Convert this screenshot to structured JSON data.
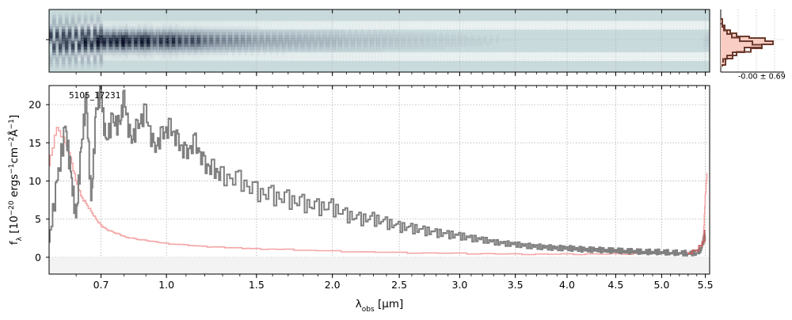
{
  "figure": {
    "object_label": "5105_17231",
    "hist_stat": "-0.00 ± 0.69"
  },
  "colors": {
    "spectrum": "#808080",
    "error": "#f4a6a6",
    "model": "#c06060",
    "image_bg": "#c8dadb",
    "hist_fill": "#f9cdc3",
    "hist_line": "#6b3a2e",
    "grid": "#b0b0b0"
  },
  "chart_data": {
    "type": "line",
    "title": "",
    "xlabel": "λ_obs [μm]",
    "ylabel": "f_λ [10^-20 ergs^-1 cm^-2 Å^-1]",
    "xlim": [
      0.5,
      5.55
    ],
    "ylim": [
      -2.2,
      22.5
    ],
    "x_scale": "sqrt",
    "x_ticks": [
      0.7,
      1.0,
      1.5,
      2.0,
      2.5,
      3.0,
      3.5,
      4.0,
      4.5,
      5.0,
      5.5
    ],
    "x_tick_labels": [
      "0.7",
      "1.0",
      "1.5",
      "2.0",
      "2.5",
      "3.0",
      "3.5",
      "4.0",
      "4.5",
      "5.0",
      "5.5"
    ],
    "y_ticks": [
      0,
      5,
      10,
      15,
      20
    ],
    "y_tick_labels": [
      "0",
      "5",
      "10",
      "15",
      "20"
    ],
    "grid": true,
    "series": [
      {
        "role": "flux",
        "x": [
          0.5,
          0.53,
          0.56,
          0.58,
          0.6,
          0.62,
          0.64,
          0.66,
          0.68,
          0.7,
          0.72,
          0.75,
          0.78,
          0.8,
          0.83,
          0.86,
          0.9,
          0.94,
          0.98,
          1.02,
          1.06,
          1.1,
          1.15,
          1.2,
          1.25,
          1.3,
          1.4,
          1.5,
          1.6,
          1.7,
          1.8,
          1.9,
          2.0,
          2.1,
          2.2,
          2.3,
          2.4,
          2.5,
          2.6,
          2.7,
          2.8,
          2.9,
          3.0,
          3.1,
          3.2,
          3.3,
          3.4,
          3.5,
          3.6,
          3.7,
          3.8,
          3.9,
          4.0,
          4.1,
          4.2,
          4.3,
          4.4,
          4.5,
          4.6,
          4.7,
          4.8,
          4.9,
          5.0,
          5.1,
          5.2,
          5.3,
          5.4,
          5.45,
          5.5
        ],
        "y": [
          2.0,
          10.0,
          17.0,
          11.0,
          5.0,
          14.0,
          21.0,
          7.0,
          19.0,
          22.0,
          15.0,
          18.0,
          17.0,
          21.0,
          15.0,
          17.0,
          19.0,
          14.0,
          16.0,
          17.0,
          15.0,
          13.5,
          15.0,
          12.0,
          11.5,
          10.5,
          10.0,
          8.5,
          8.0,
          7.5,
          7.0,
          6.5,
          6.5,
          5.5,
          5.0,
          5.0,
          4.5,
          4.0,
          3.8,
          3.5,
          3.2,
          3.0,
          2.8,
          2.5,
          2.3,
          2.0,
          1.8,
          1.7,
          1.5,
          1.4,
          1.3,
          1.2,
          1.2,
          1.1,
          1.0,
          1.0,
          0.9,
          0.9,
          0.8,
          0.8,
          0.7,
          0.7,
          0.7,
          0.6,
          0.6,
          0.5,
          0.6,
          1.0,
          3.0
        ]
      },
      {
        "role": "error",
        "x": [
          0.5,
          0.53,
          0.56,
          0.58,
          0.6,
          0.62,
          0.64,
          0.66,
          0.68,
          0.7,
          0.72,
          0.75,
          0.78,
          0.8,
          0.85,
          0.9,
          0.95,
          1.0,
          1.1,
          1.2,
          1.3,
          1.4,
          1.5,
          1.7,
          2.0,
          2.5,
          3.0,
          3.5,
          4.0,
          4.5,
          5.0,
          5.2,
          5.3,
          5.4,
          5.45,
          5.48,
          5.5,
          5.52
        ],
        "y": [
          12.0,
          17.0,
          15.0,
          13.0,
          10.0,
          8.0,
          7.0,
          6.0,
          5.0,
          4.2,
          3.7,
          3.3,
          3.0,
          2.7,
          2.4,
          2.2,
          2.0,
          1.8,
          1.6,
          1.4,
          1.3,
          1.2,
          1.1,
          1.0,
          0.8,
          0.6,
          0.5,
          0.4,
          0.4,
          0.4,
          0.5,
          0.5,
          0.6,
          0.8,
          1.2,
          3.0,
          8.0,
          11.0
        ]
      },
      {
        "role": "model",
        "x": [
          5.3,
          5.4,
          5.45,
          5.48,
          5.5
        ],
        "y": [
          0.5,
          0.9,
          1.5,
          2.0,
          3.5
        ]
      }
    ]
  }
}
